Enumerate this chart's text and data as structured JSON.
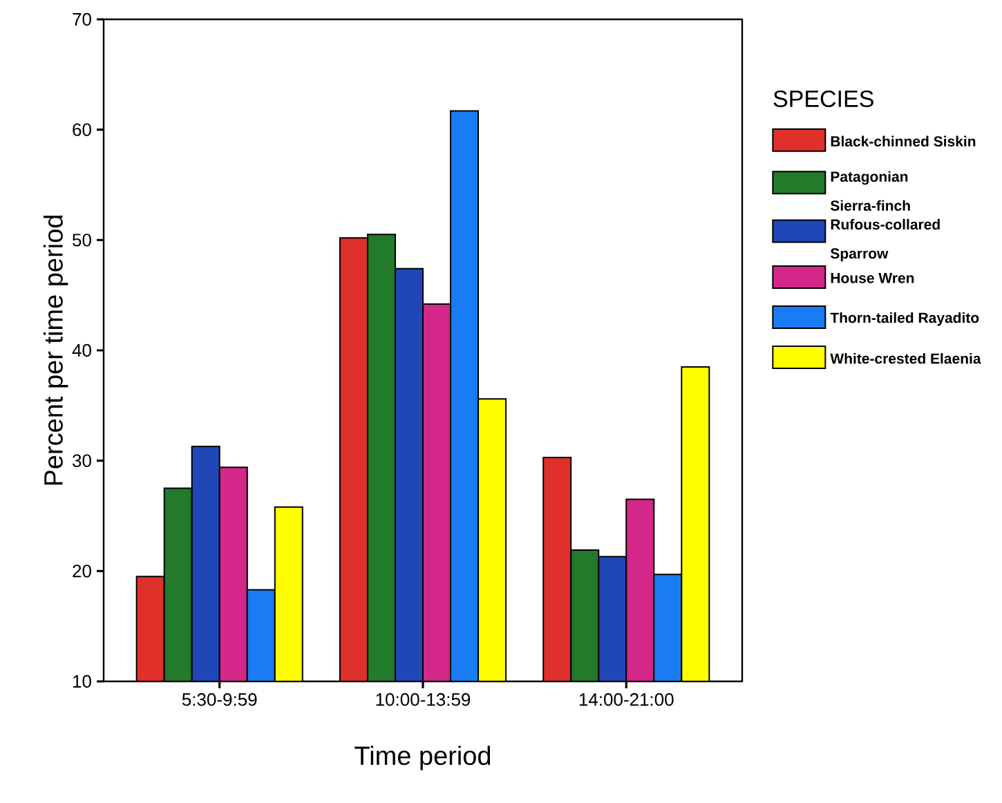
{
  "chart_data": {
    "type": "bar",
    "xlabel": "Time period",
    "ylabel": "Percent per time period",
    "legend_title": "SPECIES",
    "categories": [
      "5:30-9:59",
      "10:00-13:59",
      "14:00-21:00"
    ],
    "series": [
      {
        "name": "Black-chinned Siskin",
        "color": "#e0302a",
        "values": [
          19.5,
          50.2,
          30.3
        ]
      },
      {
        "name": "Patagonian Sierra-finch",
        "color": "#227a2a",
        "values": [
          27.5,
          50.5,
          21.9
        ]
      },
      {
        "name": "Rufous-collared Sparrow",
        "color": "#1f47b8",
        "values": [
          31.3,
          47.4,
          21.3
        ]
      },
      {
        "name": "House Wren",
        "color": "#d4278a",
        "values": [
          29.4,
          44.2,
          26.5
        ]
      },
      {
        "name": "Thorn-tailed Rayadito",
        "color": "#1a7cf5",
        "values": [
          18.3,
          61.7,
          19.7
        ]
      },
      {
        "name": "White-crested Elaenia",
        "color": "#ffff00",
        "values": [
          25.8,
          35.6,
          38.5
        ]
      }
    ],
    "ylim": [
      10,
      70
    ],
    "yticks": [
      10,
      20,
      30,
      40,
      50,
      60,
      70
    ],
    "grid": false,
    "legend": "right"
  }
}
